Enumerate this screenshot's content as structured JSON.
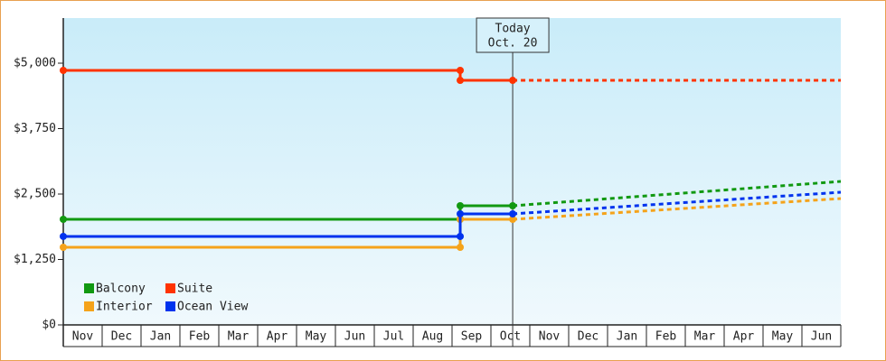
{
  "chart_data": {
    "type": "line",
    "categories": [
      "Nov",
      "Dec",
      "Jan",
      "Feb",
      "Mar",
      "Apr",
      "May",
      "Jun",
      "Jul",
      "Aug",
      "Sep",
      "Oct",
      "Nov",
      "Dec",
      "Jan",
      "Feb",
      "Mar",
      "Apr",
      "May",
      "Jun"
    ],
    "x": [
      0,
      10.21,
      10.21,
      11.56,
      20
    ],
    "xlim": [
      0,
      20
    ],
    "ylim": [
      0,
      5862
    ],
    "yticks": [
      {
        "value": 0,
        "label": "$0"
      },
      {
        "value": 1250,
        "label": "$1,250"
      },
      {
        "value": 2500,
        "label": "$2,500"
      },
      {
        "value": 3750,
        "label": "$3,750"
      },
      {
        "value": 5000,
        "label": "$5,000"
      }
    ],
    "forecast_from": 3,
    "today": {
      "x": 11.56,
      "label": [
        "Today",
        "Oct. 20"
      ]
    },
    "series": [
      {
        "name": "Balcony",
        "color": "#119911",
        "values": [
          2017,
          2017,
          2276,
          2276,
          2741
        ]
      },
      {
        "name": "Suite",
        "color": "#ff3300",
        "values": [
          4862,
          4862,
          4672,
          4672,
          4672
        ]
      },
      {
        "name": "Interior",
        "color": "#f5a31a",
        "values": [
          1483,
          1483,
          2017,
          2017,
          2414
        ]
      },
      {
        "name": "Ocean View",
        "color": "#0033ee",
        "values": [
          1690,
          1690,
          2121,
          2121,
          2534
        ]
      }
    ]
  }
}
